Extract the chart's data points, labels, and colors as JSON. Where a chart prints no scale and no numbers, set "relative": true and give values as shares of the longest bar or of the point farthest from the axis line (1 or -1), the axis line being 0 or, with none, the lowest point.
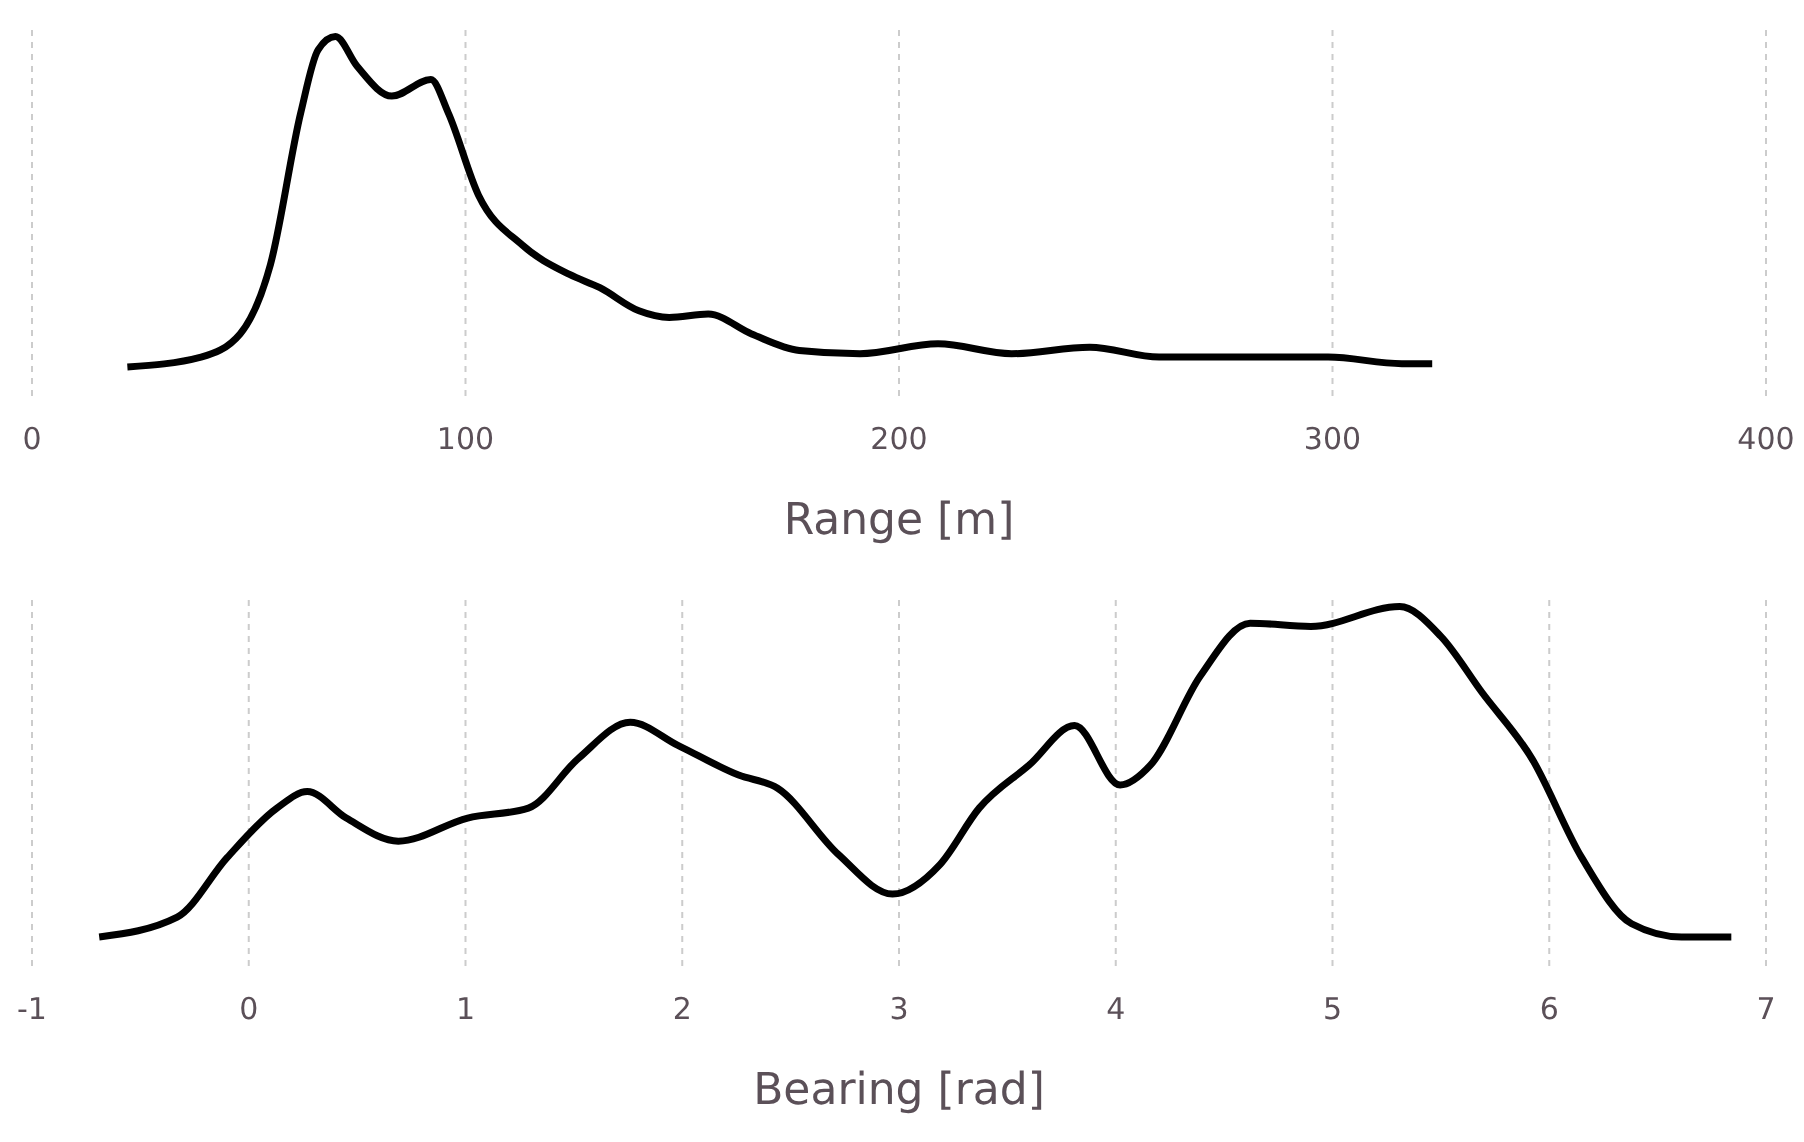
{
  "chart_data": [
    {
      "type": "line",
      "relative": true,
      "color": "#000000",
      "xlabel": "Range [m]",
      "xlim": [
        0,
        400
      ],
      "xticks": [
        0,
        100,
        200,
        300,
        400
      ],
      "grid": "x",
      "tick_labels": "x",
      "x": [
        22,
        39,
        48,
        55,
        62,
        66,
        70,
        75,
        83,
        92,
        96,
        103,
        113,
        124,
        131,
        140,
        147,
        156,
        166,
        177,
        191,
        209,
        226,
        244,
        260,
        283,
        299,
        316,
        323
      ],
      "values": [
        0,
        0.03,
        0.1,
        0.31,
        0.77,
        0.96,
        1.0,
        0.91,
        0.82,
        0.87,
        0.77,
        0.52,
        0.37,
        0.28,
        0.24,
        0.17,
        0.15,
        0.16,
        0.1,
        0.05,
        0.04,
        0.07,
        0.04,
        0.06,
        0.03,
        0.03,
        0.03,
        0.01,
        0.01
      ]
    },
    {
      "type": "line",
      "relative": true,
      "color": "#000000",
      "xlabel": "Bearing [rad]",
      "xlim": [
        -1,
        7
      ],
      "xticks": [
        -1,
        0,
        1,
        2,
        3,
        4,
        5,
        6,
        7
      ],
      "grid": "x",
      "tick_labels": "x",
      "x": [
        -0.69,
        -0.33,
        -0.1,
        0.13,
        0.27,
        0.45,
        0.69,
        1.01,
        1.29,
        1.52,
        1.76,
        1.98,
        2.26,
        2.44,
        2.72,
        2.97,
        3.19,
        3.37,
        3.6,
        3.81,
        4.02,
        4.16,
        4.39,
        4.62,
        4.9,
        5.31,
        5.5,
        5.69,
        5.92,
        6.15,
        6.38,
        6.61,
        6.84
      ],
      "values": [
        0,
        0.06,
        0.24,
        0.39,
        0.44,
        0.36,
        0.29,
        0.36,
        0.39,
        0.54,
        0.65,
        0.58,
        0.49,
        0.45,
        0.25,
        0.13,
        0.22,
        0.39,
        0.52,
        0.64,
        0.46,
        0.52,
        0.79,
        0.95,
        0.94,
        1.0,
        0.91,
        0.74,
        0.54,
        0.24,
        0.04,
        0,
        0
      ]
    }
  ]
}
